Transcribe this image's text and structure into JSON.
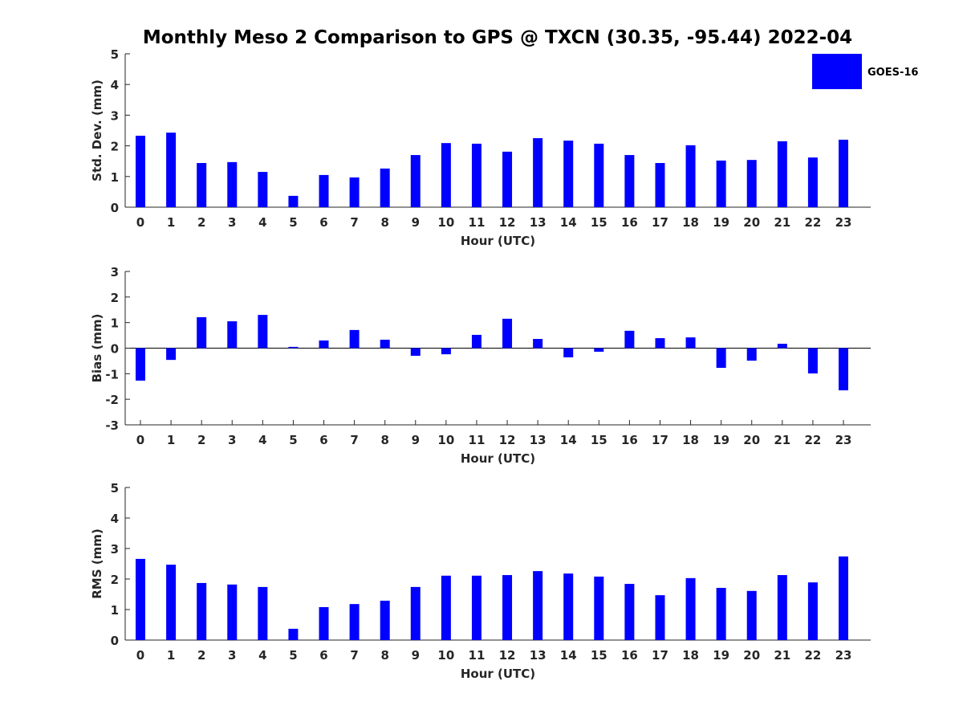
{
  "chart_data": {
    "title": "Monthly Meso 2 Comparison to GPS @ TXCN (30.35, -95.44) 2022-04",
    "legend": {
      "entries": [
        "GOES-16"
      ],
      "placement": "top-right",
      "color": "#0000ff"
    },
    "categories": [
      "0",
      "1",
      "2",
      "3",
      "4",
      "5",
      "6",
      "7",
      "8",
      "9",
      "10",
      "11",
      "12",
      "13",
      "14",
      "15",
      "16",
      "17",
      "18",
      "19",
      "20",
      "21",
      "22",
      "23"
    ],
    "panels": [
      {
        "type": "bar",
        "xlabel": "Hour (UTC)",
        "ylabel": "Std. Dev. (mm)",
        "ylim": [
          0,
          5
        ],
        "yticks": [
          0,
          1,
          2,
          3,
          4,
          5
        ],
        "series": [
          {
            "name": "GOES-16",
            "color": "#0000ff",
            "values": [
              2.33,
              2.43,
              1.44,
              1.47,
              1.15,
              0.37,
              1.05,
              0.97,
              1.26,
              1.7,
              2.09,
              2.07,
              1.81,
              2.25,
              2.17,
              2.07,
              1.7,
              1.44,
              2.02,
              1.52,
              1.54,
              2.15,
              1.62,
              2.2
            ]
          }
        ]
      },
      {
        "type": "bar",
        "xlabel": "Hour (UTC)",
        "ylabel": "Bias (mm)",
        "ylim": [
          -3,
          3
        ],
        "yticks": [
          -3,
          -2,
          -1,
          0,
          1,
          2,
          3
        ],
        "series": [
          {
            "name": "GOES-16",
            "color": "#0000ff",
            "values": [
              -1.27,
              -0.46,
              1.21,
              1.05,
              1.3,
              0.05,
              0.3,
              0.71,
              0.33,
              -0.3,
              -0.24,
              0.52,
              1.15,
              0.36,
              -0.36,
              -0.14,
              0.68,
              0.39,
              0.42,
              -0.77,
              -0.49,
              0.17,
              -0.99,
              -1.65
            ]
          }
        ]
      },
      {
        "type": "bar",
        "xlabel": "Hour (UTC)",
        "ylabel": "RMS (mm)",
        "ylim": [
          0,
          5
        ],
        "yticks": [
          0,
          1,
          2,
          3,
          4,
          5
        ],
        "series": [
          {
            "name": "GOES-16",
            "color": "#0000ff",
            "values": [
              2.66,
              2.47,
              1.87,
              1.82,
              1.74,
              0.37,
              1.08,
              1.18,
              1.29,
              1.74,
              2.11,
              2.11,
              2.13,
              2.26,
              2.18,
              2.08,
              1.84,
              1.47,
              2.03,
              1.71,
              1.61,
              2.13,
              1.89,
              2.74
            ]
          }
        ]
      }
    ]
  }
}
